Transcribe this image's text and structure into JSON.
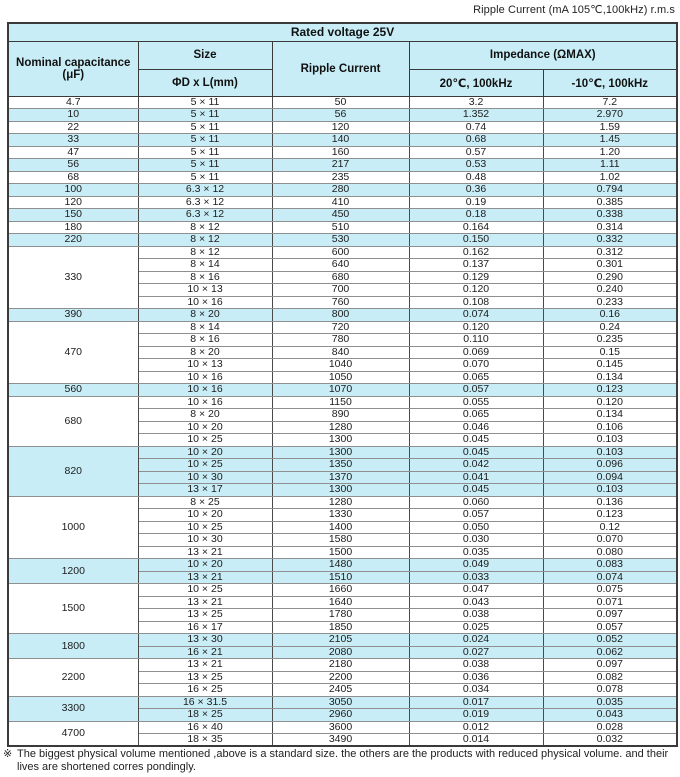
{
  "page": {
    "top_label": "Ripple Current (mA 105℃,100kHz) r.m.s",
    "footnote_marker": "※",
    "footnote_text": "The biggest physical volume mentioned ,above is a standard size. the others are the products with reduced physical volume. and their lives are shortened corres pondingly."
  },
  "colors": {
    "highlight_cyan": "#c8edf6",
    "border_dark": "#3a3a3a",
    "border_inner": "#8f8f8f"
  },
  "table": {
    "title": "Rated voltage 25V",
    "headers": {
      "capacitance_line1": "Nominal capacitance",
      "capacitance_line2": "(μF)",
      "size": "Size",
      "size_dims": "ΦD x L(mm)",
      "ripple": "Ripple Current",
      "impedance": "Impedance (ΩMAX)",
      "impedance_20c": "20℃, 100kHz",
      "impedance_minus10c": "-10℃, 100kHz"
    },
    "column_keys": [
      "size",
      "ripple_current",
      "impedance_20c",
      "impedance_minus10c"
    ],
    "groups": [
      {
        "capacitance": "4.7",
        "highlight": false,
        "rows": [
          [
            "5 × 11",
            "50",
            "3.2",
            "7.2"
          ]
        ]
      },
      {
        "capacitance": "10",
        "highlight": true,
        "rows": [
          [
            "5 × 11",
            "56",
            "1.352",
            "2.970"
          ]
        ]
      },
      {
        "capacitance": "22",
        "highlight": false,
        "rows": [
          [
            "5 × 11",
            "120",
            "0.74",
            "1.59"
          ]
        ]
      },
      {
        "capacitance": "33",
        "highlight": true,
        "rows": [
          [
            "5 × 11",
            "140",
            "0.68",
            "1.45"
          ]
        ]
      },
      {
        "capacitance": "47",
        "highlight": false,
        "rows": [
          [
            "5 × 11",
            "160",
            "0.57",
            "1.20"
          ]
        ]
      },
      {
        "capacitance": "56",
        "highlight": true,
        "rows": [
          [
            "5 × 11",
            "217",
            "0.53",
            "1.11"
          ]
        ]
      },
      {
        "capacitance": "68",
        "highlight": false,
        "rows": [
          [
            "5 × 11",
            "235",
            "0.48",
            "1.02"
          ]
        ]
      },
      {
        "capacitance": "100",
        "highlight": true,
        "rows": [
          [
            "6.3 × 12",
            "280",
            "0.36",
            "0.794"
          ]
        ]
      },
      {
        "capacitance": "120",
        "highlight": false,
        "rows": [
          [
            "6.3 × 12",
            "410",
            "0.19",
            "0.385"
          ]
        ]
      },
      {
        "capacitance": "150",
        "highlight": true,
        "rows": [
          [
            "6.3 × 12",
            "450",
            "0.18",
            "0.338"
          ]
        ]
      },
      {
        "capacitance": "180",
        "highlight": false,
        "rows": [
          [
            "8 × 12",
            "510",
            "0.164",
            "0.314"
          ]
        ]
      },
      {
        "capacitance": "220",
        "highlight": true,
        "rows": [
          [
            "8 × 12",
            "530",
            "0.150",
            "0.332"
          ]
        ]
      },
      {
        "capacitance": "330",
        "highlight": false,
        "rows": [
          [
            "8 × 12",
            "600",
            "0.162",
            "0.312"
          ],
          [
            "8 × 14",
            "640",
            "0.137",
            "0.301"
          ],
          [
            "8 × 16",
            "680",
            "0.129",
            "0.290"
          ],
          [
            "10 × 13",
            "700",
            "0.120",
            "0.240"
          ],
          [
            "10 × 16",
            "760",
            "0.108",
            "0.233"
          ]
        ]
      },
      {
        "capacitance": "390",
        "highlight": true,
        "rows": [
          [
            "8 × 20",
            "800",
            "0.074",
            "0.16"
          ]
        ]
      },
      {
        "capacitance": "470",
        "highlight": false,
        "rows": [
          [
            "8 × 14",
            "720",
            "0.120",
            "0.24"
          ],
          [
            "8 × 16",
            "780",
            "0.110",
            "0.235"
          ],
          [
            "8 × 20",
            "840",
            "0.069",
            "0.15"
          ],
          [
            "10 × 13",
            "1040",
            "0.070",
            "0.145"
          ],
          [
            "10 × 16",
            "1050",
            "0.065",
            "0.134"
          ]
        ]
      },
      {
        "capacitance": "560",
        "highlight": true,
        "rows": [
          [
            "10 × 16",
            "1070",
            "0.057",
            "0.123"
          ]
        ]
      },
      {
        "capacitance": "680",
        "highlight": false,
        "rows": [
          [
            "10 × 16",
            "1150",
            "0.055",
            "0.120"
          ],
          [
            "8 × 20",
            "890",
            "0.065",
            "0.134"
          ],
          [
            "10 × 20",
            "1280",
            "0.046",
            "0.106"
          ],
          [
            "10 × 25",
            "1300",
            "0.045",
            "0.103"
          ]
        ]
      },
      {
        "capacitance": "820",
        "highlight": true,
        "rows": [
          [
            "10 × 20",
            "1300",
            "0.045",
            "0.103"
          ],
          [
            "10 × 25",
            "1350",
            "0.042",
            "0.096"
          ],
          [
            "10 × 30",
            "1370",
            "0.041",
            "0.094"
          ],
          [
            "13 × 17",
            "1300",
            "0.045",
            "0.103"
          ]
        ]
      },
      {
        "capacitance": "1000",
        "highlight": false,
        "rows": [
          [
            "8 × 25",
            "1280",
            "0.060",
            "0.136"
          ],
          [
            "10 × 20",
            "1330",
            "0.057",
            "0.123"
          ],
          [
            "10 × 25",
            "1400",
            "0.050",
            "0.12"
          ],
          [
            "10 × 30",
            "1580",
            "0.030",
            "0.070"
          ],
          [
            "13 × 21",
            "1500",
            "0.035",
            "0.080"
          ]
        ]
      },
      {
        "capacitance": "1200",
        "highlight": true,
        "rows": [
          [
            "10 × 20",
            "1480",
            "0.049",
            "0.083"
          ],
          [
            "13 × 21",
            "1510",
            "0.033",
            "0.074"
          ]
        ]
      },
      {
        "capacitance": "1500",
        "highlight": false,
        "rows": [
          [
            "10 × 25",
            "1660",
            "0.047",
            "0.075"
          ],
          [
            "13 × 21",
            "1640",
            "0.043",
            "0.071"
          ],
          [
            "13 × 25",
            "1780",
            "0.038",
            "0.097"
          ],
          [
            "16 × 17",
            "1850",
            "0.025",
            "0.057"
          ]
        ]
      },
      {
        "capacitance": "1800",
        "highlight": true,
        "rows": [
          [
            "13 × 30",
            "2105",
            "0.024",
            "0.052"
          ],
          [
            "16 × 21",
            "2080",
            "0.027",
            "0.062"
          ]
        ]
      },
      {
        "capacitance": "2200",
        "highlight": false,
        "rows": [
          [
            "13 × 21",
            "2180",
            "0.038",
            "0.097"
          ],
          [
            "13 × 25",
            "2200",
            "0.036",
            "0.082"
          ],
          [
            "16 × 25",
            "2405",
            "0.034",
            "0.078"
          ]
        ]
      },
      {
        "capacitance": "3300",
        "highlight": true,
        "rows": [
          [
            "16 × 31.5",
            "3050",
            "0.017",
            "0.035"
          ],
          [
            "18 × 25",
            "2960",
            "0.019",
            "0.043"
          ]
        ]
      },
      {
        "capacitance": "4700",
        "highlight": false,
        "rows": [
          [
            "16 × 40",
            "3600",
            "0.012",
            "0.028"
          ],
          [
            "18 × 35",
            "3490",
            "0.014",
            "0.032"
          ]
        ]
      }
    ]
  }
}
